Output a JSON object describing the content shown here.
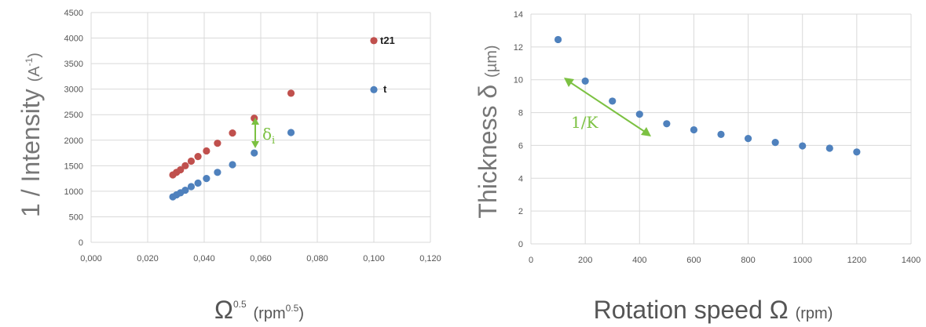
{
  "chart_data": [
    {
      "type": "scatter",
      "ylabel_main": "1 / Intensity",
      "ylabel_unit": "(A",
      "ylabel_unit_sup": "-1",
      "ylabel_unit_close": ")",
      "xlabel_main": "Ω",
      "xlabel_main_sup": "0.5",
      "xlabel_unit": "(rpm",
      "xlabel_unit_sup": "0.5",
      "xlabel_unit_close": ")",
      "xlim": [
        0,
        0.12
      ],
      "ylim": [
        0,
        4500
      ],
      "xticks": [
        "0,000",
        "0,020",
        "0,040",
        "0,060",
        "0,080",
        "0,100",
        "0,120"
      ],
      "yticks": [
        "0",
        "500",
        "1000",
        "1500",
        "2000",
        "2500",
        "3000",
        "3500",
        "4000",
        "4500"
      ],
      "grid": true,
      "series": [
        {
          "name": "t21",
          "color": "#c0504d",
          "x": [
            0.0289,
            0.0302,
            0.0316,
            0.0333,
            0.0354,
            0.0378,
            0.0408,
            0.0447,
            0.05,
            0.0577,
            0.0707,
            0.1
          ],
          "y": [
            1320,
            1370,
            1420,
            1500,
            1590,
            1680,
            1790,
            1940,
            2140,
            2430,
            2920,
            3950
          ]
        },
        {
          "name": "t",
          "color": "#4f81bd",
          "x": [
            0.0289,
            0.0302,
            0.0316,
            0.0333,
            0.0354,
            0.0378,
            0.0408,
            0.0447,
            0.05,
            0.0577,
            0.0707,
            0.1
          ],
          "y": [
            890,
            930,
            970,
            1020,
            1090,
            1160,
            1250,
            1370,
            1520,
            1750,
            2150,
            2990
          ]
        }
      ],
      "annotation": {
        "base": "δ",
        "sub": "i",
        "color": "#7cc142"
      }
    },
    {
      "type": "scatter",
      "ylabel_main": "Thickness δ",
      "ylabel_unit": "(µm)",
      "xlabel_main": "Rotation speed Ω",
      "xlabel_unit": "(rpm)",
      "xlim": [
        0,
        1400
      ],
      "ylim": [
        0,
        14
      ],
      "xticks": [
        "0",
        "200",
        "400",
        "600",
        "800",
        "1000",
        "1200",
        "1400"
      ],
      "yticks": [
        "0",
        "2",
        "4",
        "6",
        "8",
        "10",
        "12",
        "14"
      ],
      "grid": true,
      "series": [
        {
          "color": "#4f81bd",
          "x": [
            100,
            200,
            300,
            400,
            500,
            600,
            700,
            800,
            900,
            1000,
            1100,
            1200
          ],
          "y": [
            12.45,
            9.92,
            8.7,
            7.9,
            7.32,
            6.95,
            6.67,
            6.42,
            6.18,
            5.97,
            5.83,
            5.6
          ]
        }
      ],
      "annotation": {
        "label": "1/K",
        "color": "#7cc142"
      }
    }
  ]
}
